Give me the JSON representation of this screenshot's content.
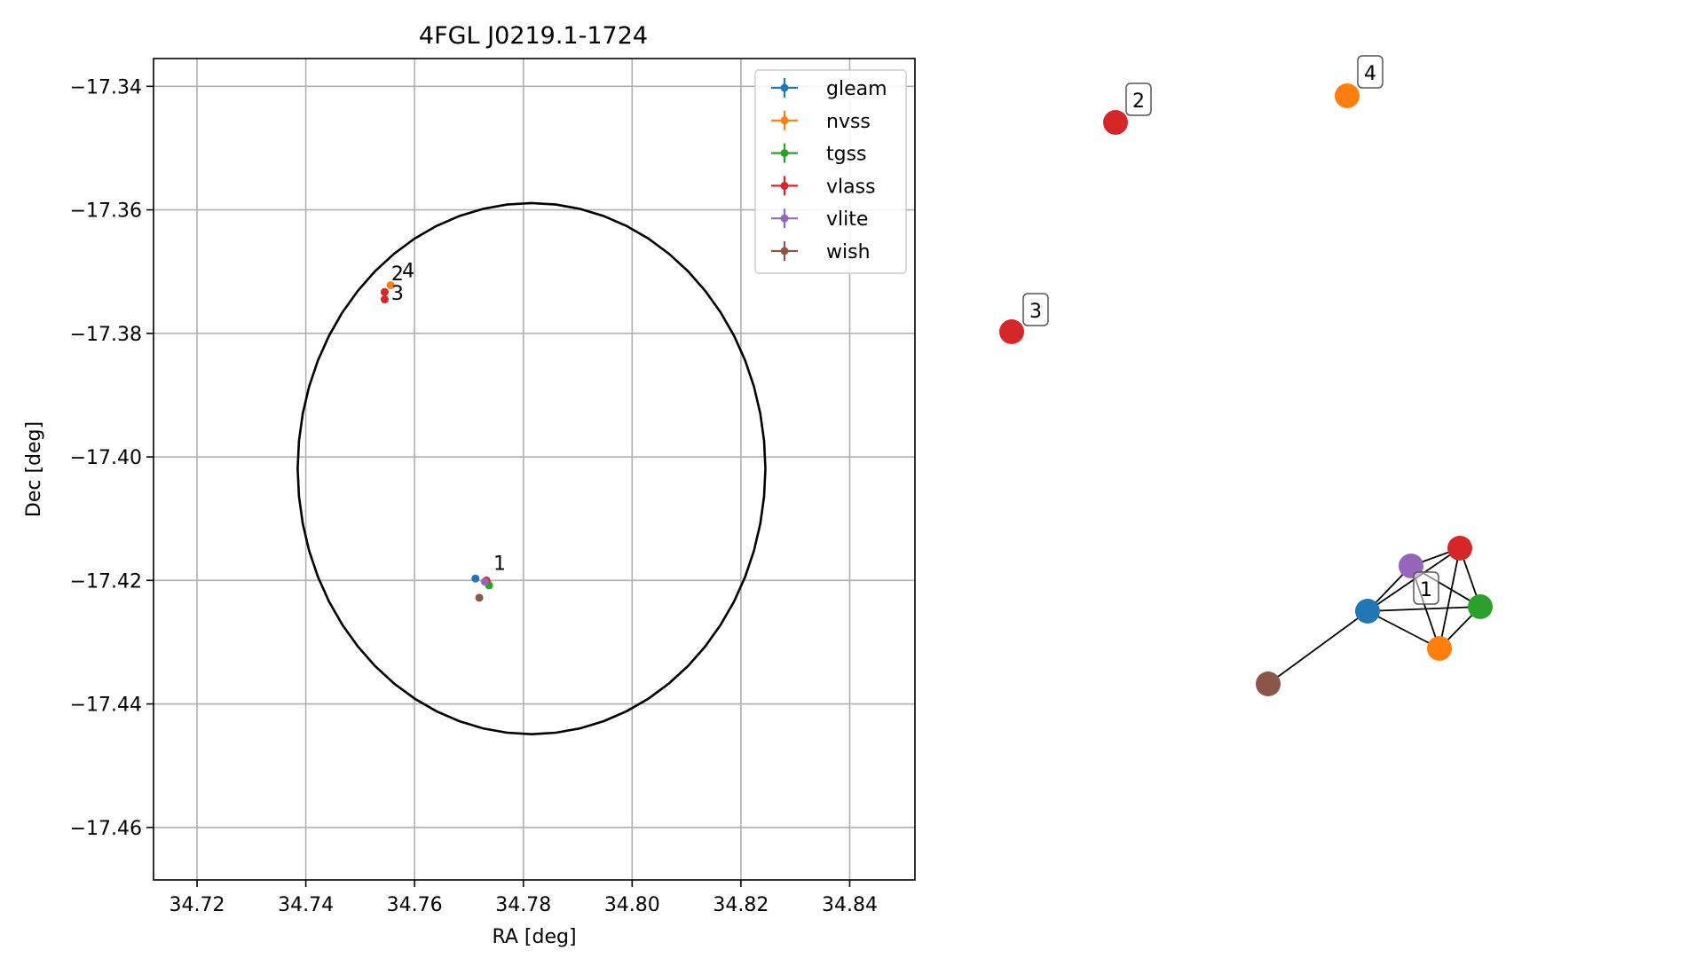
{
  "chart_data": [
    {
      "type": "scatter",
      "title": "4FGL J0219.1-1724",
      "xlabel": "RA [deg]",
      "ylabel": "Dec [deg]",
      "xlim": [
        34.712,
        34.852
      ],
      "ylim": [
        -17.4685,
        -17.3355
      ],
      "xticks": [
        34.72,
        34.74,
        34.76,
        34.78,
        34.8,
        34.82,
        34.84
      ],
      "xtick_labels": [
        "34.72",
        "34.74",
        "34.76",
        "34.78",
        "34.80",
        "34.82",
        "34.84"
      ],
      "yticks": [
        -17.34,
        -17.36,
        -17.38,
        -17.4,
        -17.42,
        -17.44,
        -17.46
      ],
      "ytick_labels": [
        "−17.34",
        "−17.36",
        "−17.38",
        "−17.40",
        "−17.42",
        "−17.44",
        "−17.46"
      ],
      "grid": true,
      "legend_position": "top-right",
      "circle": {
        "ra": 34.7815,
        "dec": -17.4019,
        "radius": 0.043,
        "color": "#000000"
      },
      "series": [
        {
          "name": "gleam",
          "color": "#1f77b4",
          "points": [
            {
              "ra": 34.7712,
              "dec": -17.4197
            }
          ]
        },
        {
          "name": "nvss",
          "color": "#ff7f0e",
          "points": [
            {
              "ra": 34.7734,
              "dec": -17.4204
            },
            {
              "ra": 34.7556,
              "dec": -17.3722
            }
          ]
        },
        {
          "name": "tgss",
          "color": "#2ca02c",
          "points": [
            {
              "ra": 34.7737,
              "dec": -17.4208
            }
          ]
        },
        {
          "name": "vlass",
          "color": "#d62728",
          "points": [
            {
              "ra": 34.7732,
              "dec": -17.42
            },
            {
              "ra": 34.7545,
              "dec": -17.3733
            },
            {
              "ra": 34.7545,
              "dec": -17.3745
            }
          ]
        },
        {
          "name": "vlite",
          "color": "#9467bd",
          "points": [
            {
              "ra": 34.7729,
              "dec": -17.4202
            }
          ]
        },
        {
          "name": "wish",
          "color": "#8c564b",
          "points": [
            {
              "ra": 34.7719,
              "dec": -17.4228
            }
          ]
        }
      ],
      "point_labels": [
        {
          "text": "1",
          "ra": 34.7745,
          "dec": -17.4183
        },
        {
          "text": "2",
          "ra": 34.7557,
          "dec": -17.3714
        },
        {
          "text": "3",
          "ra": 34.7557,
          "dec": -17.3746
        },
        {
          "text": "4",
          "ra": 34.7577,
          "dec": -17.3709
        }
      ]
    },
    {
      "type": "graph",
      "nodes": [
        {
          "id": "vlass-2",
          "color": "#d62728",
          "label": "2"
        },
        {
          "id": "nvss-4",
          "color": "#ff7f0e",
          "label": "4"
        },
        {
          "id": "vlass-3",
          "color": "#d62728",
          "label": "3"
        },
        {
          "id": "vlite-1",
          "color": "#9467bd"
        },
        {
          "id": "vlass-1",
          "color": "#d62728"
        },
        {
          "id": "gleam-1",
          "color": "#1f77b4"
        },
        {
          "id": "tgss-1",
          "color": "#2ca02c"
        },
        {
          "id": "nvss-1",
          "color": "#ff7f0e"
        },
        {
          "id": "wish-1",
          "color": "#8c564b"
        }
      ],
      "edges": [
        [
          "gleam-1",
          "vlite-1"
        ],
        [
          "gleam-1",
          "vlass-1"
        ],
        [
          "gleam-1",
          "tgss-1"
        ],
        [
          "gleam-1",
          "nvss-1"
        ],
        [
          "gleam-1",
          "wish-1"
        ],
        [
          "vlite-1",
          "vlass-1"
        ],
        [
          "vlite-1",
          "tgss-1"
        ],
        [
          "vlite-1",
          "nvss-1"
        ],
        [
          "vlass-1",
          "tgss-1"
        ],
        [
          "vlass-1",
          "nvss-1"
        ],
        [
          "tgss-1",
          "nvss-1"
        ]
      ],
      "cluster_labels": [
        "1"
      ]
    }
  ]
}
